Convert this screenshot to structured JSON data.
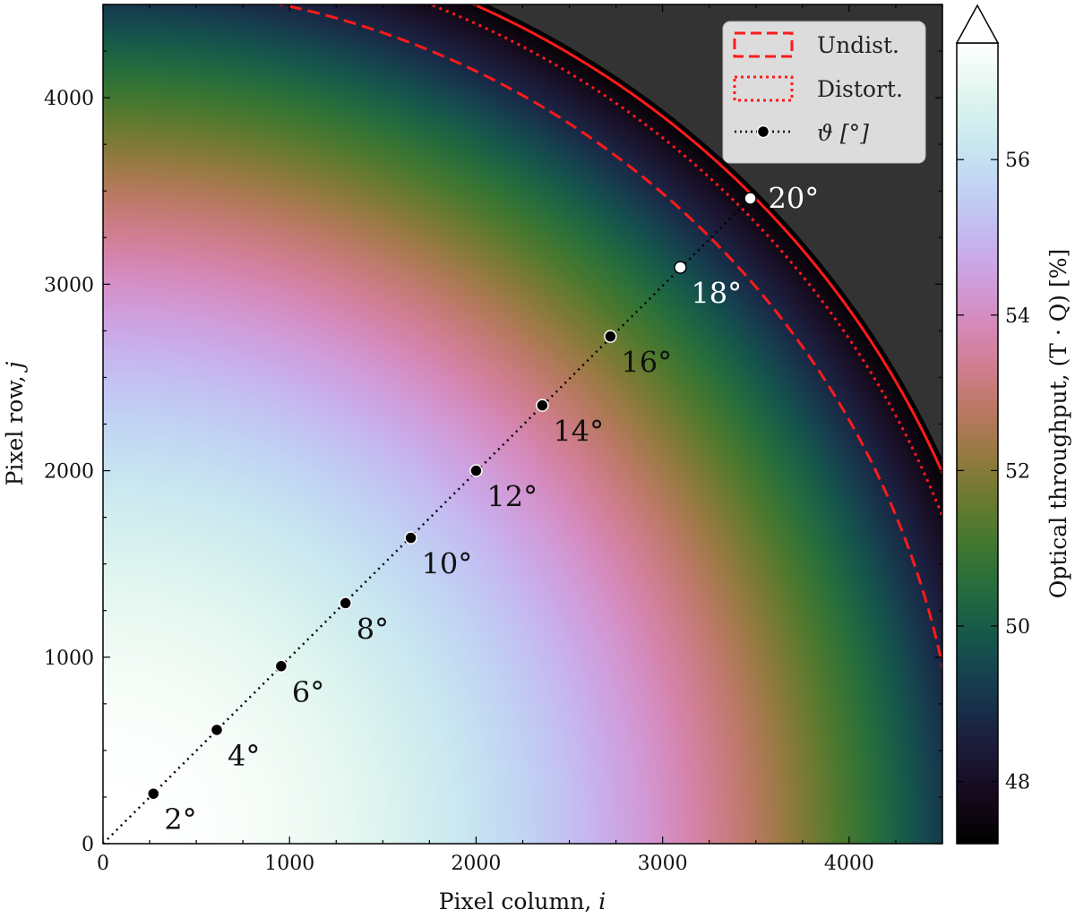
{
  "chart_data": {
    "type": "heatmap",
    "title": "",
    "xlabel": "Pixel column, i",
    "ylabel": "Pixel row, j",
    "xlabel_text": "Pixel column, ",
    "xlabel_var": "i",
    "ylabel_text": "Pixel row, ",
    "ylabel_var": "j",
    "xlim": [
      0,
      4500
    ],
    "ylim": [
      0,
      4500
    ],
    "x_ticks": [
      0,
      1000,
      2000,
      3000,
      4000
    ],
    "y_ticks": [
      0,
      1000,
      2000,
      3000,
      4000
    ],
    "x_tick_labels": [
      "0",
      "1000",
      "2000",
      "3000",
      "4000"
    ],
    "y_tick_labels": [
      "0",
      "1000",
      "2000",
      "3000",
      "4000"
    ],
    "colorbar": {
      "label": "Optical throughput, (T · Q) [%]",
      "label_text": "Optical throughput, (T · Q) [%]",
      "range": [
        47.2,
        57.5
      ],
      "extend": "max",
      "ticks": [
        48,
        50,
        52,
        54,
        56
      ],
      "tick_labels": [
        "48",
        "50",
        "52",
        "54",
        "56"
      ],
      "colormap": "cubehelix"
    },
    "field": {
      "r_min": 0,
      "r_max": 4950,
      "value_center": 57.5,
      "value_edge": 47.2,
      "outside_color": "#333333"
    },
    "contours": [
      {
        "name": "Undist.",
        "style": "dashed",
        "radius": 4600
      },
      {
        "name": "Distort.",
        "style": "dotted",
        "radius": 4830
      },
      {
        "name": "",
        "style": "solid",
        "radius": 4920
      }
    ],
    "angle_points": [
      {
        "x": 270,
        "y": 268,
        "label": "2°"
      },
      {
        "x": 610,
        "y": 610,
        "label": "4°"
      },
      {
        "x": 955,
        "y": 952,
        "label": "6°"
      },
      {
        "x": 1300,
        "y": 1290,
        "label": "8°"
      },
      {
        "x": 1650,
        "y": 1640,
        "label": "10°"
      },
      {
        "x": 2000,
        "y": 2000,
        "label": "12°"
      },
      {
        "x": 2355,
        "y": 2350,
        "label": "14°"
      },
      {
        "x": 2720,
        "y": 2720,
        "label": "16°"
      },
      {
        "x": 3095,
        "y": 3090,
        "label": "18°"
      },
      {
        "x": 3470,
        "y": 3460,
        "label": "20°"
      }
    ],
    "legend": {
      "placement": "top-right",
      "entries": [
        {
          "label": "Undist.",
          "style": "dashed"
        },
        {
          "label": "Distort.",
          "style": "dotted"
        },
        {
          "label": "ϑ [°]",
          "style": "dotted-marker"
        }
      ]
    },
    "colors": {
      "contour": "#ff1a1a",
      "marker_dark": "#000000",
      "marker_light": "#ffffff"
    }
  }
}
